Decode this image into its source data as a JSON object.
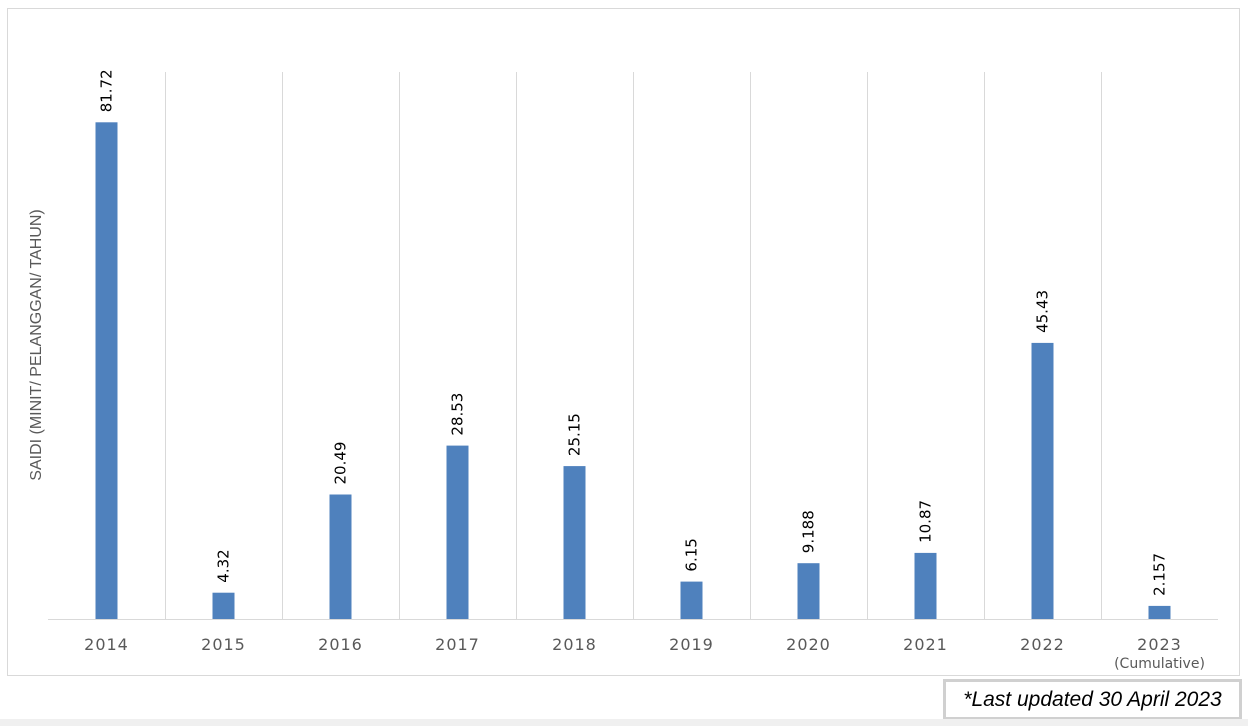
{
  "chart_data": {
    "type": "bar",
    "title": "",
    "xlabel": "",
    "ylabel": "SAIDI (MINIT/ PELANGGAN/ TAHUN)",
    "categories": [
      "2014",
      "2015",
      "2016",
      "2017",
      "2018",
      "2019",
      "2020",
      "2021",
      "2022",
      "2023"
    ],
    "category_sublabels": [
      "",
      "",
      "",
      "",
      "",
      "",
      "",
      "",
      "",
      "(Cumulative)"
    ],
    "values": [
      81.72,
      4.32,
      20.49,
      28.53,
      25.15,
      6.15,
      9.188,
      10.87,
      45.43,
      2.157
    ],
    "value_labels": [
      "81.72",
      "4.32",
      "20.49",
      "28.53",
      "25.15",
      "6.15",
      "9.188",
      "10.87",
      "45.43",
      "2.157"
    ],
    "ylim": [
      0,
      90
    ],
    "grid": "vertical",
    "bar_color": "#4f81bd",
    "grid_color": "#d9d9d9"
  },
  "note": "*Last updated 30 April 2023"
}
